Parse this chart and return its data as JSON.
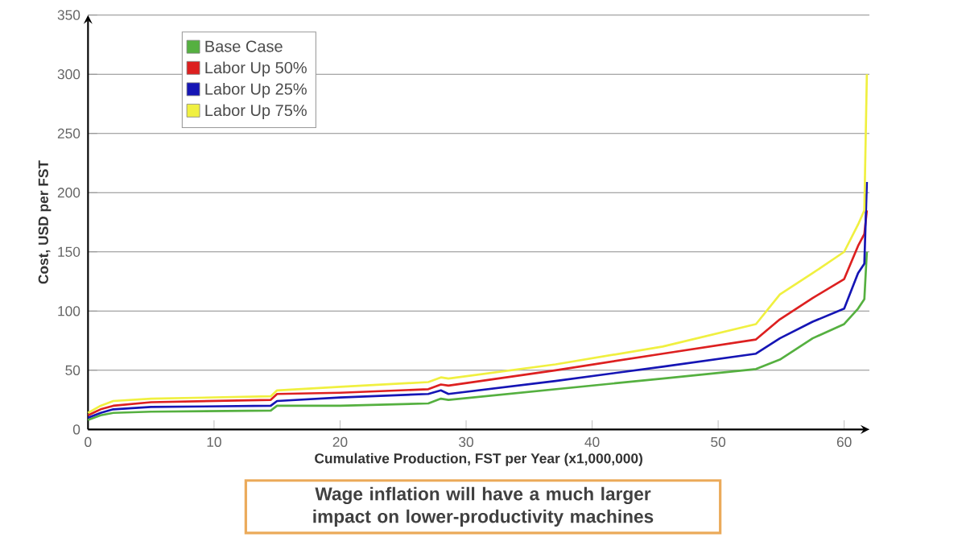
{
  "chart_data": {
    "type": "line",
    "xlabel": "Cumulative Production, FST per Year (x1,000,000)",
    "ylabel": "Cost, USD per FST",
    "x": [
      0,
      1,
      2,
      5,
      14.5,
      15,
      20,
      27,
      28,
      28.6,
      37.1,
      45.6,
      53,
      54.9,
      57.5,
      60,
      61.1,
      61.6,
      61.8
    ],
    "series": [
      {
        "name": "Base Case",
        "color": "#55b040",
        "values": [
          8,
          12,
          14,
          15,
          16,
          20,
          20,
          22,
          26,
          25,
          34,
          43,
          51,
          59,
          77,
          89,
          102,
          110,
          150
        ]
      },
      {
        "name": "Labor Up 50%",
        "color": "#dd2020",
        "values": [
          12,
          17,
          20,
          23,
          25,
          30,
          31,
          34,
          38,
          37,
          50,
          64,
          76,
          93,
          111,
          127,
          155,
          165,
          185
        ]
      },
      {
        "name": "Labor Up 25%",
        "color": "#1515b5",
        "values": [
          10,
          14,
          17,
          19,
          20,
          24,
          27,
          30,
          33,
          30,
          41,
          53,
          64,
          77,
          91,
          102,
          132,
          140,
          209
        ]
      },
      {
        "name": "Labor Up 75%",
        "color": "#f0f040",
        "values": [
          14,
          20,
          24,
          26,
          28,
          33,
          36,
          40,
          44,
          43,
          55,
          70,
          89,
          114,
          132,
          150,
          173,
          185,
          300
        ]
      }
    ],
    "xlim": [
      0,
      62
    ],
    "ylim": [
      0,
      350
    ],
    "xticks": [
      0,
      10,
      20,
      30,
      40,
      50,
      60
    ],
    "yticks": [
      0,
      50,
      100,
      150,
      200,
      250,
      300,
      350
    ],
    "grid": "y",
    "legend": "top left",
    "annotations": [
      "Wage inflation will have a much larger impact on lower-productivity machines"
    ]
  }
}
